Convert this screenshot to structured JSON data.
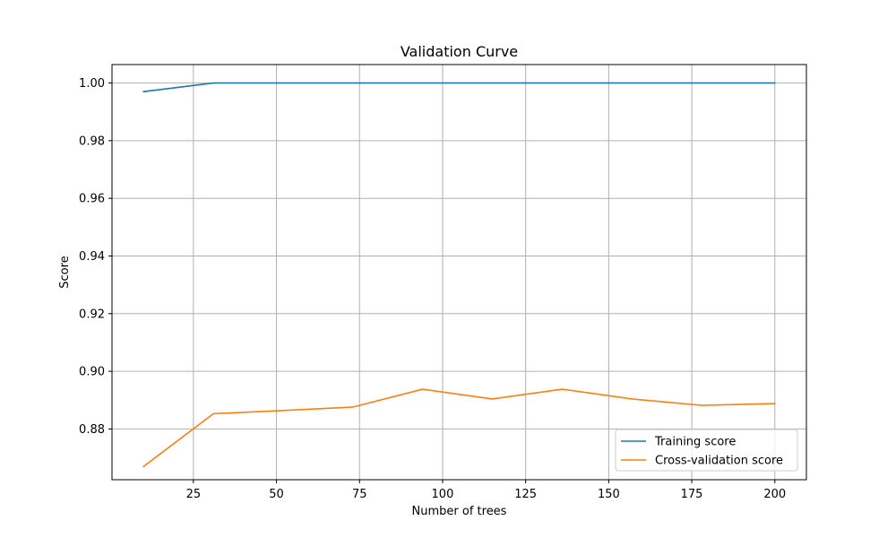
{
  "chart_data": {
    "type": "line",
    "title": "Validation Curve",
    "xlabel": "Number of trees",
    "ylabel": "Score",
    "xlim": [
      0.5,
      209.5
    ],
    "ylim": [
      0.8624,
      1.0064
    ],
    "xticks": [
      25,
      50,
      75,
      100,
      125,
      150,
      175,
      200
    ],
    "yticks": [
      0.88,
      0.9,
      0.92,
      0.94,
      0.96,
      0.98,
      1.0
    ],
    "xtick_labels": [
      "25",
      "50",
      "75",
      "100",
      "125",
      "150",
      "175",
      "200"
    ],
    "ytick_labels": [
      "0.88",
      "0.90",
      "0.92",
      "0.94",
      "0.96",
      "0.98",
      "1.00"
    ],
    "grid": true,
    "legend_position": "lower-right",
    "x": [
      10,
      31,
      52,
      73,
      94,
      115,
      136,
      157,
      178,
      200
    ],
    "series": [
      {
        "name": "Training score",
        "color": "#1f77b4",
        "values": [
          0.997,
          1.0,
          1.0,
          1.0,
          1.0,
          1.0,
          1.0,
          1.0,
          1.0,
          1.0
        ]
      },
      {
        "name": "Cross-validation score",
        "color": "#ff7f0e",
        "values": [
          0.867,
          0.8853,
          0.8864,
          0.8876,
          0.8938,
          0.8904,
          0.8938,
          0.8904,
          0.8882,
          0.8888
        ]
      }
    ]
  }
}
